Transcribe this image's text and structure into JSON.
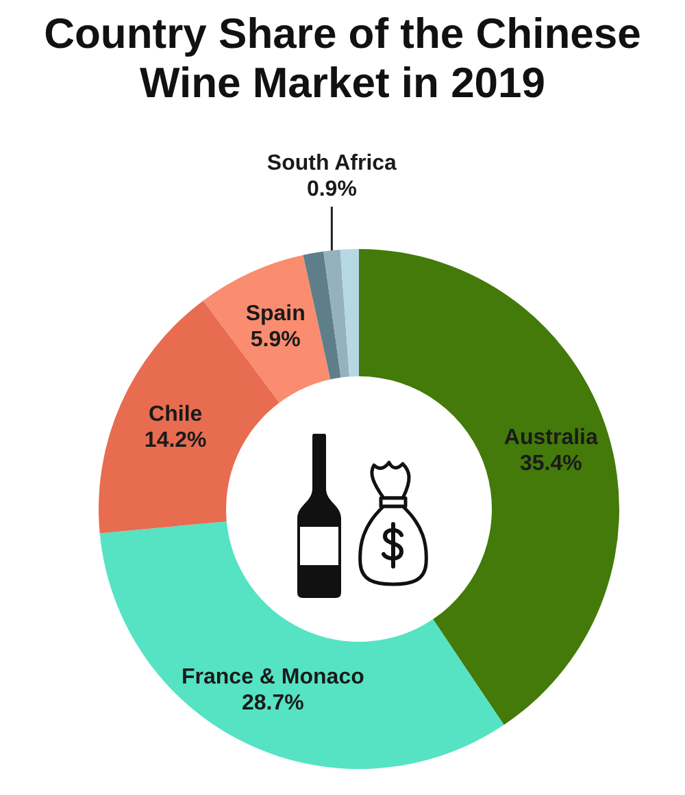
{
  "chart_data": {
    "type": "donut",
    "title": "Country Share of the Chinese Wine Market in 2019",
    "categories": [
      "Australia",
      "France & Monaco",
      "Chile",
      "Spain",
      null,
      "South Africa",
      null
    ],
    "values": [
      35.4,
      28.7,
      14.2,
      5.9,
      1.1,
      0.9,
      1.0
    ],
    "value_labels": [
      "35.4%",
      "28.7%",
      "14.2%",
      "5.9%",
      null,
      "0.9%",
      null
    ],
    "colors": [
      "#437a0a",
      "#55e3c4",
      "#e86c50",
      "#fa8c6f",
      "#5e7e89",
      "#93b2bd",
      "#b5d8e2"
    ]
  }
}
